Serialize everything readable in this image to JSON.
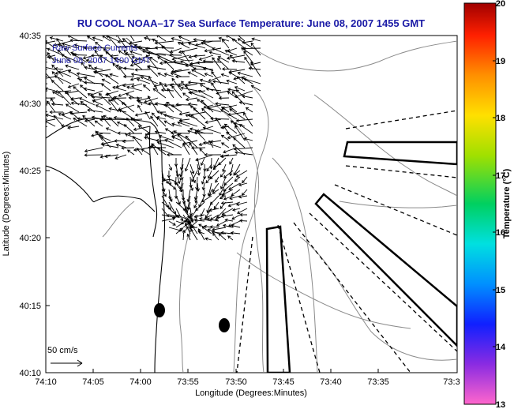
{
  "title": "RU COOL   NOAA–17  Sea Surface Temperature:  June 08, 2007 1455 GMT",
  "overlay": {
    "line1": "Raw Surface Currents",
    "line2": "June 08, 2007 1400 GMT"
  },
  "axes": {
    "xlabel": "Longitude (Degrees:Minutes)",
    "ylabel": "Latitude (Degrees:Minutes)",
    "xticks": [
      "74:10",
      "74:05",
      "74:00",
      "73:55",
      "73:50",
      "73:45",
      "73:40",
      "73:35",
      "73:3"
    ],
    "yticks": [
      "40:35",
      "40:30",
      "40:25",
      "40:20",
      "40:15",
      "40:10"
    ]
  },
  "scale_label": "50 cm/s",
  "colorbar": {
    "label": "Temperature (°C)",
    "ticks": [
      "20",
      "19",
      "18",
      "17",
      "16",
      "15",
      "14",
      "13"
    ],
    "min": 13,
    "max": 20
  },
  "colors": {
    "title": "#1a1aa6",
    "coast": "#000000",
    "contour": "#8a8a8a",
    "vectors": "#000000"
  }
}
